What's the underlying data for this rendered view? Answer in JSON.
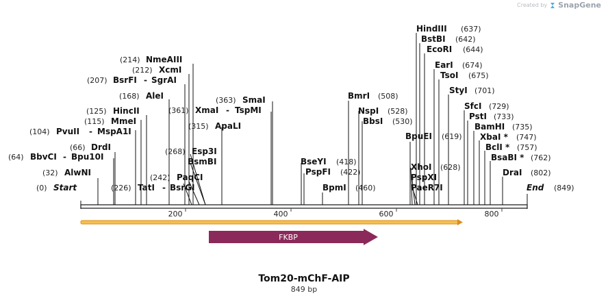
{
  "credit": {
    "prefix": "Created by",
    "brand": "SnapGene"
  },
  "title": "Tom20-mChF-AIP",
  "subtitle": "849 bp",
  "ticks": [
    "200",
    "400",
    "600",
    "800"
  ],
  "start_label": {
    "pos": "(0)",
    "name": "Start"
  },
  "end_label": {
    "name": "End",
    "pos": "(849)"
  },
  "features": [
    {
      "name": "FKBP",
      "color": "#8b2a5a"
    }
  ],
  "enzymes": [
    {
      "pos": "(32)",
      "name": "AlwNI"
    },
    {
      "pos": "(64)",
      "name": "BbvCI",
      "name2": "Bpu10I"
    },
    {
      "pos": "(66)",
      "name": "DrdI"
    },
    {
      "pos": "(104)",
      "name": "PvuII",
      "name2": "MspA1I"
    },
    {
      "pos": "(115)",
      "name": "MmeI"
    },
    {
      "pos": "(125)",
      "name": "HincII"
    },
    {
      "pos": "(168)",
      "name": "AleI"
    },
    {
      "pos": "(207)",
      "name": "BsrFI",
      "name2": "SgrAI"
    },
    {
      "pos": "(212)",
      "name": "XcmI"
    },
    {
      "pos": "(214)",
      "name": "NmeAIII"
    },
    {
      "pos": "(226)",
      "name": "TatI",
      "name2": "BsrGI"
    },
    {
      "pos": "(242)",
      "name": "PaqCI"
    },
    {
      "pos": "(268)",
      "name": "Esp3I",
      "name_b": "BsmBI"
    },
    {
      "pos": "(315)",
      "name": "ApaLI"
    },
    {
      "pos": "(361)",
      "name": "XmaI",
      "name2": "TspMI"
    },
    {
      "pos": "(363)",
      "name": "SmaI"
    },
    {
      "pos": "(418)",
      "name": "BseYI"
    },
    {
      "pos": "(422)",
      "name": "PspFI"
    },
    {
      "pos": "(460)",
      "name": "BpmI"
    },
    {
      "pos": "(508)",
      "name": "BmrI"
    },
    {
      "pos": "(528)",
      "name": "NspI"
    },
    {
      "pos": "(530)",
      "name": "BbsI"
    },
    {
      "pos": "(619)",
      "name": "BpuEI"
    },
    {
      "pos": "(628)",
      "name": "XhoI",
      "name_b": "PspXI",
      "name_c": "PaeR7I"
    },
    {
      "pos": "(637)",
      "name": "HindIII"
    },
    {
      "pos": "(642)",
      "name": "BstBI"
    },
    {
      "pos": "(644)",
      "name": "EcoRI"
    },
    {
      "pos": "(674)",
      "name": "EarI"
    },
    {
      "pos": "(675)",
      "name": "TsoI"
    },
    {
      "pos": "(701)",
      "name": "StyI"
    },
    {
      "pos": "(729)",
      "name": "SfcI"
    },
    {
      "pos": "(733)",
      "name": "PstI"
    },
    {
      "pos": "(735)",
      "name": "BamHI"
    },
    {
      "pos": "(747)",
      "name": "XbaI *"
    },
    {
      "pos": "(757)",
      "name": "BclI *"
    },
    {
      "pos": "(762)",
      "name": "BsaBI *"
    },
    {
      "pos": "(802)",
      "name": "DraI"
    }
  ]
}
